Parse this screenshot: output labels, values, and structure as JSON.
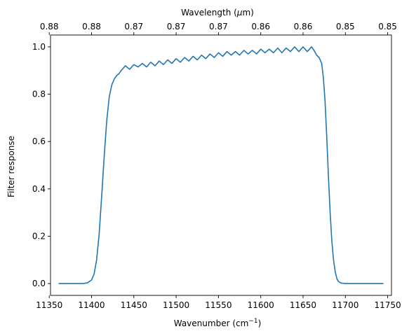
{
  "chart_data": {
    "type": "line",
    "xlabel": "Wavenumber (cm",
    "xlabel_sup": "−1",
    "xlabel_end": ")",
    "ylabel": "Filter response",
    "top_xlabel_pre": "Wavelength (",
    "top_xlabel_mu": "μ",
    "top_xlabel_post": "m)",
    "xlim": [
      11351.5,
      11754.5
    ],
    "ylim": [
      -0.05,
      1.05
    ],
    "x_ticks": [
      11350,
      11400,
      11450,
      11500,
      11550,
      11600,
      11650,
      11700,
      11750
    ],
    "y_ticks": [
      0.0,
      0.2,
      0.4,
      0.6,
      0.8,
      1.0
    ],
    "y_tick_labels": [
      "0.0",
      "0.2",
      "0.4",
      "0.6",
      "0.8",
      "1.0"
    ],
    "top_ticks": [
      {
        "x": 11350,
        "label": "0.88"
      },
      {
        "x": 11400,
        "label": "0.88"
      },
      {
        "x": 11450,
        "label": "0.87"
      },
      {
        "x": 11500,
        "label": "0.87"
      },
      {
        "x": 11550,
        "label": "0.87"
      },
      {
        "x": 11600,
        "label": "0.86"
      },
      {
        "x": 11650,
        "label": "0.86"
      },
      {
        "x": 11700,
        "label": "0.85"
      },
      {
        "x": 11750,
        "label": "0.85"
      }
    ],
    "line_color": "#1f77b4",
    "grid": false,
    "series": [
      {
        "x": [
          11361,
          11370,
          11380,
          11390,
          11395,
          11400,
          11403,
          11406,
          11409,
          11412,
          11415,
          11418,
          11421,
          11424,
          11427,
          11430,
          11432,
          11435,
          11440,
          11445,
          11450,
          11455,
          11460,
          11465,
          11470,
          11475,
          11480,
          11485,
          11490,
          11495,
          11500,
          11505,
          11510,
          11515,
          11520,
          11525,
          11530,
          11535,
          11540,
          11545,
          11550,
          11555,
          11560,
          11565,
          11570,
          11575,
          11580,
          11585,
          11590,
          11595,
          11600,
          11605,
          11610,
          11615,
          11620,
          11625,
          11630,
          11635,
          11640,
          11645,
          11650,
          11655,
          11660,
          11663,
          11666,
          11669,
          11672,
          11674,
          11676,
          11678,
          11680,
          11682,
          11684,
          11686,
          11688,
          11690,
          11692,
          11695,
          11700,
          11710,
          11720,
          11745
        ],
        "y": [
          0.0,
          0.0,
          0.0,
          0.0,
          0.003,
          0.015,
          0.04,
          0.1,
          0.21,
          0.37,
          0.54,
          0.69,
          0.79,
          0.84,
          0.865,
          0.88,
          0.885,
          0.9,
          0.92,
          0.905,
          0.925,
          0.915,
          0.93,
          0.915,
          0.935,
          0.92,
          0.94,
          0.925,
          0.945,
          0.93,
          0.95,
          0.935,
          0.955,
          0.94,
          0.96,
          0.945,
          0.965,
          0.95,
          0.97,
          0.955,
          0.975,
          0.96,
          0.98,
          0.965,
          0.98,
          0.965,
          0.985,
          0.97,
          0.985,
          0.97,
          0.99,
          0.975,
          0.99,
          0.975,
          0.995,
          0.975,
          0.995,
          0.98,
          1.0,
          0.98,
          1.0,
          0.98,
          1.0,
          0.985,
          0.965,
          0.955,
          0.93,
          0.87,
          0.77,
          0.62,
          0.45,
          0.3,
          0.18,
          0.1,
          0.05,
          0.02,
          0.008,
          0.002,
          0.0,
          0.0,
          0.0,
          0.0
        ]
      }
    ]
  }
}
